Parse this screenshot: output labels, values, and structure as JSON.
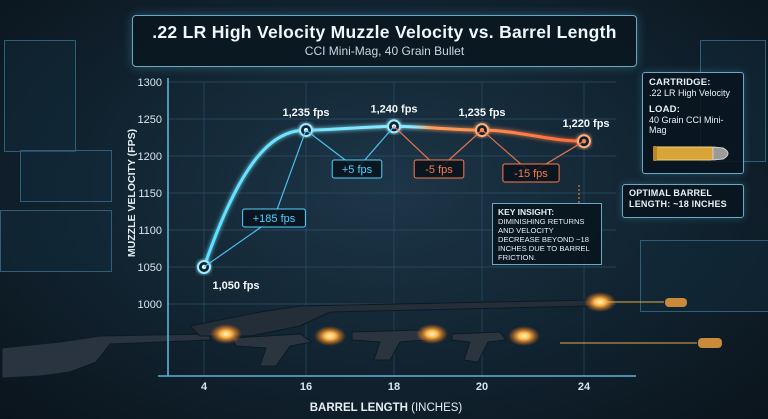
{
  "chart_data": {
    "type": "line",
    "title": ".22 LR High Velocity Muzzle Velocity vs. Barrel Length",
    "subtitle": "CCI Mini-Mag, 40 Grain Bullet",
    "xlabel": "BARREL LENGTH",
    "xlabel_unit": "(INCHES)",
    "ylabel": "MUZZLE VELOCITY (FPS)",
    "ylim": [
      1000,
      1300
    ],
    "y_ticks": [
      "1000",
      "1050",
      "1100",
      "1150",
      "1200",
      "1250",
      "1300"
    ],
    "x_ticks": [
      "4",
      "16",
      "18",
      "20",
      "24"
    ],
    "grid": true,
    "series": [
      {
        "x": [
          4,
          16,
          18,
          20,
          24
        ],
        "values": [
          1050,
          1235,
          1240,
          1235,
          1220
        ],
        "point_labels": [
          "1,050 fps",
          "1,235 fps",
          "1,240 fps",
          "1,235 fps",
          "1,220 fps"
        ]
      }
    ],
    "deltas": [
      "+185 fps",
      "+5 fps",
      "-5 fps",
      "-15 fps"
    ]
  },
  "info_panel": {
    "cartridge_label": "CARTRIDGE:",
    "cartridge_value": ".22 LR High Velocity",
    "load_label": "LOAD:",
    "load_value": "40 Grain CCI Mini-Mag",
    "optimal_text": "OPTIMAL BARREL LENGTH: ~18 INCHES"
  },
  "insight": {
    "title": "KEY INSIGHT:",
    "text": "DIMINISHING RETURNS AND VELOCITY DECREASE BEYOND ~18 INCHES DUE TO BARREL FRICTION."
  },
  "colors": {
    "curve_rise": "#5ee0ff",
    "curve_fall": "#ff6a3a",
    "delta_positive": "#4fd2ff",
    "delta_negative": "#ff7a4a",
    "grid": "#2c5369"
  }
}
